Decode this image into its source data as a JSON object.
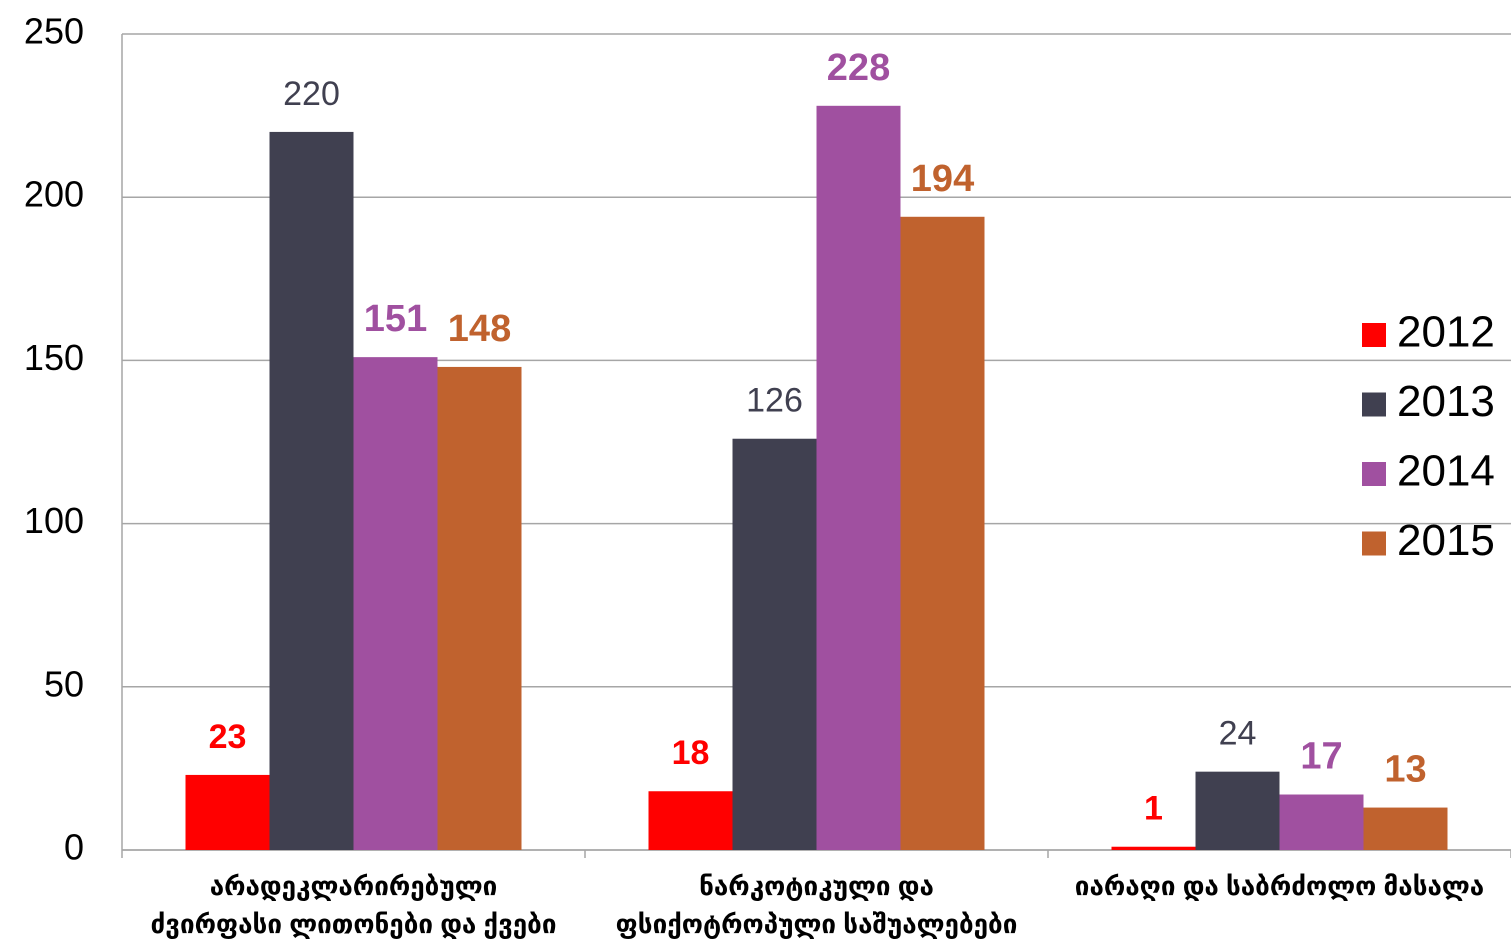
{
  "chart_data": {
    "type": "bar",
    "categories": [
      [
        "არადეკლარირებული",
        "ძვირფასი ლითონები და ქვები"
      ],
      [
        "ნარკოტიკული და",
        "ფსიქოტროპული საშუალებები"
      ],
      [
        "იარაღი და საბრძოლო მასალა"
      ]
    ],
    "series": [
      {
        "name": "2012",
        "color": "#ff0000",
        "values": [
          23,
          18,
          1
        ]
      },
      {
        "name": "2013",
        "color": "#404050",
        "values": [
          220,
          126,
          24
        ]
      },
      {
        "name": "2014",
        "color": "#a050a0",
        "values": [
          151,
          228,
          17
        ]
      },
      {
        "name": "2015",
        "color": "#c0622e",
        "values": [
          148,
          194,
          13
        ]
      }
    ],
    "ylim": [
      0,
      250
    ],
    "yticks": [
      0,
      50,
      100,
      150,
      200,
      250
    ],
    "grid": true,
    "legend": "right"
  }
}
